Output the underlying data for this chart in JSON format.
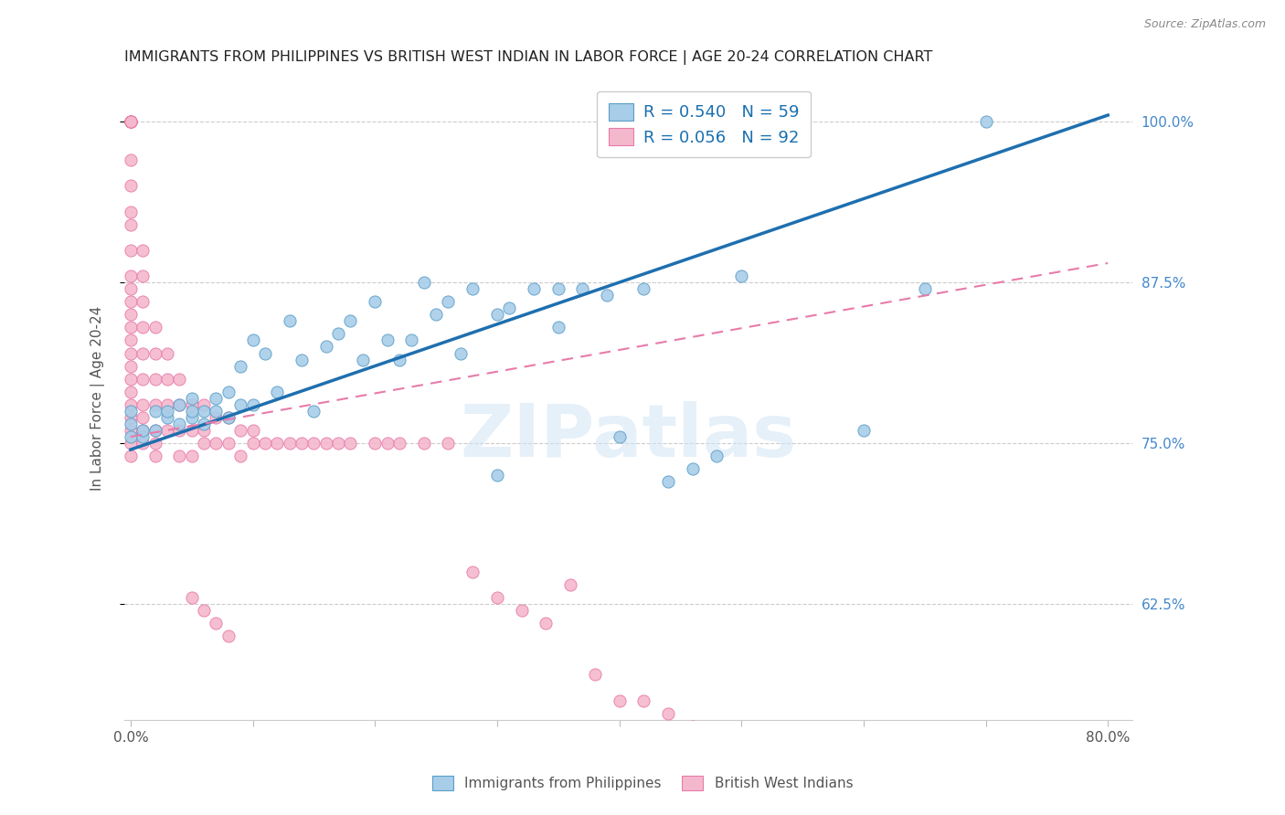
{
  "title": "IMMIGRANTS FROM PHILIPPINES VS BRITISH WEST INDIAN IN LABOR FORCE | AGE 20-24 CORRELATION CHART",
  "source": "Source: ZipAtlas.com",
  "ylabel": "In Labor Force | Age 20-24",
  "xlim": [
    -0.005,
    0.82
  ],
  "ylim": [
    0.535,
    1.035
  ],
  "xticks": [
    0.0,
    0.1,
    0.2,
    0.3,
    0.4,
    0.5,
    0.6,
    0.7,
    0.8
  ],
  "xticklabels": [
    "0.0%",
    "",
    "",
    "",
    "",
    "",
    "",
    "",
    "80.0%"
  ],
  "yticks": [
    0.625,
    0.75,
    0.875,
    1.0
  ],
  "yticklabels": [
    "62.5%",
    "75.0%",
    "87.5%",
    "100.0%"
  ],
  "blue_color": "#a8cde8",
  "blue_edge_color": "#5b9ec9",
  "pink_color": "#f4b8cc",
  "pink_edge_color": "#e87baa",
  "blue_line_color": "#1e6faf",
  "pink_line_color": "#e87baa",
  "R_blue": 0.54,
  "N_blue": 59,
  "R_pink": 0.056,
  "N_pink": 92,
  "watermark": "ZIPatlas",
  "blue_line_x0": 0.0,
  "blue_line_y0": 0.745,
  "blue_line_x1": 0.8,
  "blue_line_y1": 1.005,
  "pink_line_x0": 0.0,
  "pink_line_y0": 0.755,
  "pink_line_x1": 0.8,
  "pink_line_y1": 0.89,
  "blue_points_x": [
    0.0,
    0.0,
    0.0,
    0.01,
    0.01,
    0.02,
    0.02,
    0.03,
    0.03,
    0.04,
    0.04,
    0.05,
    0.05,
    0.05,
    0.06,
    0.06,
    0.07,
    0.07,
    0.08,
    0.08,
    0.09,
    0.09,
    0.1,
    0.1,
    0.11,
    0.12,
    0.13,
    0.14,
    0.15,
    0.16,
    0.17,
    0.18,
    0.19,
    0.2,
    0.21,
    0.22,
    0.23,
    0.24,
    0.25,
    0.26,
    0.27,
    0.28,
    0.3,
    0.31,
    0.33,
    0.35,
    0.37,
    0.39,
    0.4,
    0.42,
    0.44,
    0.46,
    0.48,
    0.5,
    0.3,
    0.35,
    0.6,
    0.65,
    0.7
  ],
  "blue_points_y": [
    0.755,
    0.765,
    0.775,
    0.755,
    0.76,
    0.76,
    0.775,
    0.77,
    0.775,
    0.765,
    0.78,
    0.77,
    0.775,
    0.785,
    0.765,
    0.775,
    0.775,
    0.785,
    0.77,
    0.79,
    0.78,
    0.81,
    0.78,
    0.83,
    0.82,
    0.79,
    0.845,
    0.815,
    0.775,
    0.825,
    0.835,
    0.845,
    0.815,
    0.86,
    0.83,
    0.815,
    0.83,
    0.875,
    0.85,
    0.86,
    0.82,
    0.87,
    0.725,
    0.855,
    0.87,
    0.87,
    0.87,
    0.865,
    0.755,
    0.87,
    0.72,
    0.73,
    0.74,
    0.88,
    0.85,
    0.84,
    0.76,
    0.87,
    1.0
  ],
  "pink_points_x": [
    0.0,
    0.0,
    0.0,
    0.0,
    0.0,
    0.0,
    0.0,
    0.0,
    0.0,
    0.0,
    0.0,
    0.0,
    0.0,
    0.0,
    0.0,
    0.0,
    0.0,
    0.0,
    0.0,
    0.0,
    0.0,
    0.0,
    0.0,
    0.0,
    0.0,
    0.0,
    0.01,
    0.01,
    0.01,
    0.01,
    0.01,
    0.01,
    0.01,
    0.01,
    0.01,
    0.01,
    0.02,
    0.02,
    0.02,
    0.02,
    0.02,
    0.02,
    0.02,
    0.03,
    0.03,
    0.03,
    0.03,
    0.04,
    0.04,
    0.04,
    0.04,
    0.05,
    0.05,
    0.05,
    0.06,
    0.06,
    0.06,
    0.07,
    0.07,
    0.08,
    0.08,
    0.09,
    0.09,
    0.1,
    0.1,
    0.11,
    0.12,
    0.13,
    0.14,
    0.15,
    0.16,
    0.17,
    0.18,
    0.2,
    0.21,
    0.22,
    0.24,
    0.26,
    0.28,
    0.3,
    0.32,
    0.34,
    0.36,
    0.38,
    0.4,
    0.42,
    0.44,
    0.46,
    0.05,
    0.06,
    0.07,
    0.08
  ],
  "pink_points_y": [
    1.0,
    1.0,
    1.0,
    1.0,
    1.0,
    1.0,
    0.97,
    0.95,
    0.93,
    0.92,
    0.9,
    0.88,
    0.87,
    0.86,
    0.85,
    0.84,
    0.83,
    0.82,
    0.81,
    0.8,
    0.79,
    0.78,
    0.77,
    0.76,
    0.75,
    0.74,
    0.9,
    0.88,
    0.86,
    0.84,
    0.82,
    0.8,
    0.78,
    0.77,
    0.76,
    0.75,
    0.84,
    0.82,
    0.8,
    0.78,
    0.76,
    0.75,
    0.74,
    0.82,
    0.8,
    0.78,
    0.76,
    0.8,
    0.78,
    0.76,
    0.74,
    0.78,
    0.76,
    0.74,
    0.78,
    0.76,
    0.75,
    0.77,
    0.75,
    0.77,
    0.75,
    0.76,
    0.74,
    0.76,
    0.75,
    0.75,
    0.75,
    0.75,
    0.75,
    0.75,
    0.75,
    0.75,
    0.75,
    0.75,
    0.75,
    0.75,
    0.75,
    0.75,
    0.65,
    0.63,
    0.62,
    0.61,
    0.64,
    0.57,
    0.55,
    0.55,
    0.54,
    0.53,
    0.63,
    0.62,
    0.61,
    0.6
  ]
}
